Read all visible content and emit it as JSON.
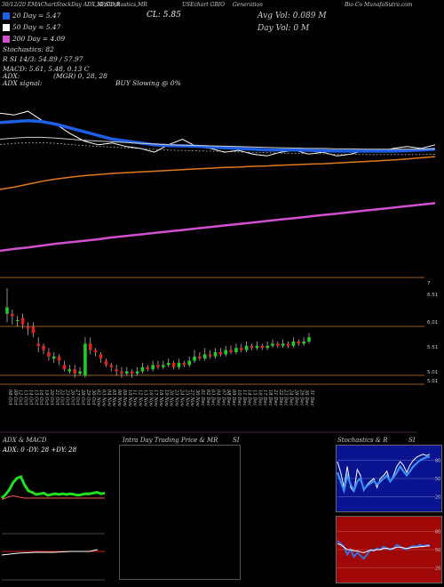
{
  "header": {
    "top_left": "30/12/20 EMAChartStockDay ADX,MACD,R",
    "top_mid": "SI,Stochastics,MR",
    "cl": "CL: 5.85",
    "ticker": "USEchart GBIO",
    "company_1": "Generation",
    "company_2": "Bio Co MunafaSutra.com",
    "avg_vol": "Avg Vol: 0.089 M",
    "day_vol": "Day Vol: 0   M",
    "ema20": "20  Day = 5.47",
    "ema50": "50  Day = 5.47",
    "ema200": "200  Day = 4.09",
    "stoch": "Stochastics: 82",
    "rsi": "R                SI 14/3: 54.89 / 57.97",
    "macd": "MACD: 5.61, 5.48, 0.13 C",
    "adx": "ADX:",
    "mgr": "(MGR) 0, 28, 28",
    "adx_signal": "ADX  signal:",
    "buy": "BUY Slowing @ 0%"
  },
  "colors": {
    "ema20": "#1e5fe6",
    "ema50": "#cccccc",
    "ema200": "#e07a1a",
    "long_ma": "#d050d0",
    "up": "#22cc22",
    "down": "#dd2222",
    "grid": "#cc7a2a",
    "adx_line": "#22dd22",
    "stoch_bg": "#0a1490",
    "rsi_bg": "#a00808"
  },
  "chart_data": [
    {
      "type": "line",
      "name": "EMA panel",
      "series": [
        {
          "name": "Price",
          "values": [
            7.75,
            7.7,
            7.8,
            7.55,
            7.45,
            7.2,
            7.0,
            6.9,
            6.95,
            6.85,
            6.8,
            6.7,
            6.9,
            7.05,
            6.85,
            6.8,
            6.7,
            6.75,
            6.65,
            6.6,
            6.7,
            6.75,
            6.65,
            6.7,
            6.6,
            6.65,
            6.75,
            6.7,
            6.8,
            6.85,
            6.8,
            6.9
          ]
        },
        {
          "name": "EMA 20",
          "values": [
            7.5,
            7.52,
            7.55,
            7.52,
            7.45,
            7.35,
            7.25,
            7.15,
            7.05,
            7.0,
            6.95,
            6.9,
            6.88,
            6.87,
            6.86,
            6.84,
            6.82,
            6.8,
            6.78,
            6.76,
            6.76,
            6.76,
            6.75,
            6.74,
            6.73,
            6.73,
            6.73,
            6.73,
            6.73,
            6.74,
            6.76,
            6.78
          ]
        },
        {
          "name": "EMA 50",
          "values": [
            7.05,
            7.08,
            7.1,
            7.1,
            7.08,
            7.05,
            7.02,
            7.0,
            6.98,
            6.96,
            6.94,
            6.92,
            6.9,
            6.89,
            6.88,
            6.87,
            6.86,
            6.85,
            6.84,
            6.83,
            6.82,
            6.81,
            6.8,
            6.8,
            6.79,
            6.79,
            6.78,
            6.78,
            6.78,
            6.78,
            6.78,
            6.79
          ]
        },
        {
          "name": "EMA 200",
          "values": [
            5.7,
            5.76,
            5.84,
            5.92,
            5.98,
            6.03,
            6.07,
            6.1,
            6.13,
            6.15,
            6.17,
            6.19,
            6.21,
            6.23,
            6.25,
            6.27,
            6.29,
            6.3,
            6.32,
            6.33,
            6.35,
            6.36,
            6.38,
            6.39,
            6.41,
            6.43,
            6.45,
            6.47,
            6.49,
            6.52,
            6.55,
            6.58
          ]
        },
        {
          "name": "MA long",
          "values": [
            4.05,
            4.1,
            4.14,
            4.19,
            4.24,
            4.28,
            4.32,
            4.36,
            4.41,
            4.45,
            4.49,
            4.53,
            4.57,
            4.61,
            4.65,
            4.69,
            4.73,
            4.77,
            4.81,
            4.85,
            4.89,
            4.93,
            4.97,
            5.01,
            5.05,
            5.09,
            5.13,
            5.17,
            5.21,
            5.25,
            5.29,
            5.33
          ]
        }
      ],
      "ylim": [
        3.5,
        8.4
      ]
    },
    {
      "type": "bar",
      "name": "Candles",
      "categories": [
        "08 Oct",
        "09 Oct",
        "12 Oct",
        "13 Oct",
        "14 Oct",
        "15 Oct",
        "16 Oct",
        "19 Oct",
        "20 Oct",
        "21 Oct",
        "22 Oct",
        "23 Oct",
        "26 Oct",
        "27 Oct",
        "28 Oct",
        "29 Oct",
        "30 Oct",
        "02 Nov",
        "03 Nov",
        "04 Nov",
        "05 Nov",
        "06 Nov",
        "09 Nov",
        "10 Nov",
        "11 Nov",
        "12 Nov",
        "13 Nov",
        "16 Nov",
        "17 Nov",
        "18 Nov",
        "19 Nov",
        "20 Nov",
        "23 Nov",
        "24 Nov",
        "25 Nov",
        "27 Nov",
        "30 Nov",
        "01 Dec",
        "02 Dec",
        "03 Dec",
        "04 Dec",
        "07 Dec",
        "08 Dec",
        "09 Dec",
        "10 Dec",
        "11 Dec",
        "14 Dec",
        "15 Dec",
        "16 Dec",
        "17 Dec",
        "18 Dec",
        "21 Dec",
        "22 Dec",
        "23 Dec",
        "24 Dec",
        "28 Dec",
        "29 Dec",
        "30 Dec",
        "31 Dec"
      ],
      "candles": [
        [
          6.3,
          6.45,
          6.9,
          6.1
        ],
        [
          6.3,
          6.25,
          6.4,
          6.05
        ],
        [
          6.15,
          6.15,
          6.25,
          6.0
        ],
        [
          6.2,
          6.05,
          6.3,
          5.95
        ],
        [
          6.0,
          5.95,
          6.1,
          5.8
        ],
        [
          6.0,
          5.85,
          6.1,
          5.75
        ],
        [
          5.6,
          5.55,
          5.75,
          5.4
        ],
        [
          5.55,
          5.45,
          5.6,
          5.35
        ],
        [
          5.4,
          5.3,
          5.5,
          5.2
        ],
        [
          5.25,
          5.3,
          5.4,
          5.15
        ],
        [
          5.3,
          5.2,
          5.35,
          5.1
        ],
        [
          5.1,
          5.0,
          5.2,
          4.95
        ],
        [
          4.95,
          5.0,
          5.1,
          4.9
        ],
        [
          5.0,
          4.9,
          5.1,
          4.8
        ],
        [
          4.9,
          4.95,
          5.05,
          4.85
        ],
        [
          4.85,
          5.6,
          5.75,
          4.8
        ],
        [
          5.6,
          5.45,
          5.75,
          5.35
        ],
        [
          5.45,
          5.4,
          5.5,
          5.3
        ],
        [
          5.35,
          5.25,
          5.4,
          5.15
        ],
        [
          5.2,
          5.1,
          5.25,
          5.05
        ],
        [
          5.1,
          5.05,
          5.15,
          4.95
        ],
        [
          5.0,
          4.95,
          5.1,
          4.85
        ],
        [
          4.95,
          4.9,
          5.05,
          4.8
        ],
        [
          4.9,
          4.95,
          5.05,
          4.85
        ],
        [
          4.95,
          4.9,
          5.0,
          4.8
        ],
        [
          4.9,
          4.95,
          5.05,
          4.85
        ],
        [
          4.95,
          5.05,
          5.15,
          4.9
        ],
        [
          5.05,
          5.0,
          5.1,
          4.95
        ],
        [
          5.0,
          5.1,
          5.2,
          4.95
        ],
        [
          5.1,
          5.05,
          5.2,
          5.0
        ],
        [
          5.05,
          5.1,
          5.2,
          5.0
        ],
        [
          5.1,
          5.15,
          5.25,
          5.05
        ],
        [
          5.15,
          5.05,
          5.2,
          5.0
        ],
        [
          5.05,
          5.15,
          5.25,
          5.0
        ],
        [
          5.15,
          5.1,
          5.2,
          5.05
        ],
        [
          5.1,
          5.2,
          5.3,
          5.05
        ],
        [
          5.2,
          5.3,
          5.45,
          5.15
        ],
        [
          5.3,
          5.25,
          5.4,
          5.2
        ],
        [
          5.25,
          5.35,
          5.5,
          5.2
        ],
        [
          5.35,
          5.3,
          5.45,
          5.25
        ],
        [
          5.3,
          5.4,
          5.5,
          5.25
        ],
        [
          5.4,
          5.35,
          5.5,
          5.3
        ],
        [
          5.35,
          5.45,
          5.55,
          5.3
        ],
        [
          5.45,
          5.4,
          5.55,
          5.35
        ],
        [
          5.4,
          5.5,
          5.6,
          5.35
        ],
        [
          5.5,
          5.45,
          5.6,
          5.4
        ],
        [
          5.45,
          5.55,
          5.65,
          5.4
        ],
        [
          5.55,
          5.5,
          5.6,
          5.45
        ],
        [
          5.5,
          5.55,
          5.65,
          5.45
        ],
        [
          5.55,
          5.5,
          5.6,
          5.45
        ],
        [
          5.5,
          5.55,
          5.65,
          5.45
        ],
        [
          5.55,
          5.6,
          5.7,
          5.5
        ],
        [
          5.6,
          5.55,
          5.65,
          5.5
        ],
        [
          5.55,
          5.6,
          5.7,
          5.5
        ],
        [
          5.6,
          5.55,
          5.65,
          5.5
        ],
        [
          5.55,
          5.65,
          5.75,
          5.5
        ],
        [
          5.65,
          5.6,
          5.7,
          5.55
        ],
        [
          5.6,
          5.65,
          5.75,
          5.55
        ],
        [
          5.65,
          5.75,
          5.85,
          5.6
        ]
      ],
      "y_ticks": [
        "7",
        "6.51",
        "6.01",
        "5.51",
        "5.01",
        "5.01"
      ],
      "ylim": [
        4.65,
        7.15
      ]
    },
    {
      "type": "line",
      "name": "ADX & MACD",
      "title": "ADX  & MACD",
      "readout": "ADX: 0  -DY: 28  +DY: 28",
      "series": [
        {
          "name": "ADX",
          "values": [
            50,
            55,
            62,
            72,
            78,
            80,
            68,
            60,
            58,
            55,
            56,
            57,
            54,
            55,
            56,
            55,
            56,
            55,
            56,
            55,
            54,
            55,
            56,
            56,
            57,
            58,
            56,
            57
          ]
        },
        {
          "name": "MACD",
          "values": [
            48,
            50,
            52,
            53,
            52,
            51,
            50,
            50,
            50,
            50,
            50,
            50,
            50,
            50,
            50,
            50,
            50,
            50,
            50,
            50,
            50,
            50,
            50,
            50,
            50,
            50,
            50,
            50
          ]
        }
      ],
      "ylim": [
        0,
        100
      ]
    },
    {
      "type": "line",
      "name": "Intra Day Trading Price & MRSI",
      "title": "Intra  Day Trading Price  & MR",
      "title_right": "SI"
    },
    {
      "type": "line",
      "name": "Stochastics & RSI",
      "title": "Stochastics & R",
      "title_right": "SI",
      "y_ticks": [
        "80",
        "50",
        "20"
      ],
      "series": [
        {
          "name": "Fast",
          "values": [
            78,
            60,
            35,
            70,
            35,
            28,
            65,
            55,
            30,
            40,
            45,
            50,
            35,
            50,
            55,
            62,
            45,
            55,
            70,
            78,
            72,
            60,
            72,
            80,
            85,
            88,
            90,
            88,
            90
          ]
        },
        {
          "name": "Slow",
          "values": [
            60,
            45,
            30,
            55,
            40,
            30,
            45,
            50,
            32,
            38,
            42,
            46,
            40,
            45,
            50,
            55,
            45,
            52,
            60,
            70,
            62,
            55,
            62,
            70,
            75,
            80,
            83,
            85,
            86
          ]
        }
      ],
      "ylim": [
        0,
        100
      ]
    },
    {
      "type": "line",
      "name": "RSI",
      "y_ticks": [
        "80",
        "50",
        "20"
      ],
      "series": [
        {
          "name": "RSI fast",
          "values": [
            65,
            60,
            55,
            42,
            50,
            38,
            45,
            40,
            35,
            42,
            50,
            48,
            52,
            50,
            55,
            52,
            50,
            52,
            58,
            55,
            52,
            50,
            54,
            56,
            55,
            58,
            56,
            57,
            58
          ]
        },
        {
          "name": "RSI slow",
          "values": [
            60,
            58,
            54,
            50,
            50,
            48,
            48,
            46,
            45,
            47,
            49,
            49,
            50,
            50,
            52,
            52,
            51,
            52,
            54,
            54,
            53,
            52,
            53,
            54,
            54,
            55,
            55,
            56,
            56
          ]
        }
      ],
      "ylim": [
        0,
        100
      ]
    }
  ]
}
